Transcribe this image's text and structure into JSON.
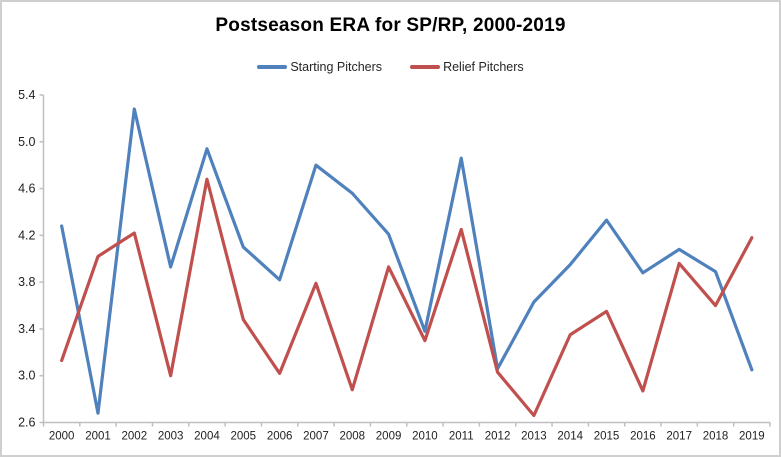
{
  "title": "Postseason ERA for SP/RP, 2000-2019",
  "chart_data": {
    "type": "line",
    "title": "Postseason ERA for SP/RP, 2000-2019",
    "x": [
      "2000",
      "2001",
      "2002",
      "2003",
      "2004",
      "2005",
      "2006",
      "2007",
      "2008",
      "2009",
      "2010",
      "2011",
      "2012",
      "2013",
      "2014",
      "2015",
      "2016",
      "2017",
      "2018",
      "2019"
    ],
    "series": [
      {
        "name": "Starting Pitchers",
        "color": "#4F81BD",
        "values": [
          4.28,
          2.68,
          5.28,
          3.93,
          4.94,
          4.1,
          3.82,
          4.8,
          4.56,
          4.21,
          3.38,
          4.86,
          3.06,
          3.63,
          3.95,
          4.33,
          3.88,
          4.08,
          3.89,
          3.05
        ]
      },
      {
        "name": "Relief Pitchers",
        "color": "#C0504D",
        "values": [
          3.13,
          4.02,
          4.22,
          3.0,
          4.68,
          3.48,
          3.02,
          3.79,
          2.88,
          3.93,
          3.3,
          4.25,
          3.03,
          2.66,
          3.35,
          3.55,
          2.87,
          3.96,
          3.6,
          4.18
        ]
      }
    ],
    "ylim": [
      2.6,
      5.4
    ],
    "y_ticks": [
      "2.6",
      "3.0",
      "3.4",
      "3.8",
      "4.2",
      "4.6",
      "5.0",
      "5.4"
    ],
    "xlabel": "",
    "ylabel": "",
    "grid": false,
    "legend_position": "top-center",
    "axis_color": "#BFBFBF",
    "label_color": "#1f1f1f"
  }
}
